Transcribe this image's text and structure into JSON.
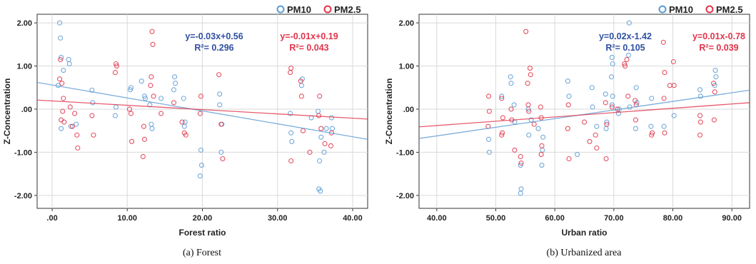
{
  "chart_data": [
    {
      "type": "scatter",
      "title": "",
      "caption": "(a) Forest",
      "xlabel": "Forest ratio",
      "ylabel": "Z-Concentration",
      "xlim": [
        -2,
        42
      ],
      "ylim": [
        -2.3,
        2.2
      ],
      "xticks": [
        0,
        10,
        20,
        30,
        40
      ],
      "xtick_labels": [
        ".00",
        "10.00",
        "20.00",
        "30.00",
        "40.00"
      ],
      "yticks": [
        2,
        1,
        0,
        -1,
        -2
      ],
      "ytick_labels": [
        "2.00",
        "1.00",
        ".00",
        "-1.00",
        "-2.00"
      ],
      "grid": true,
      "legend": "top-right",
      "series": [
        {
          "name": "PM10",
          "color": "#5b9bd5",
          "trend": {
            "equation": "y=-0.03x+0.56",
            "r2_label": "R²= 0.296",
            "slope": -0.03,
            "intercept": 0.56
          },
          "points": [
            [
              1,
              2.0
            ],
            [
              1.1,
              1.65
            ],
            [
              1.2,
              1.2
            ],
            [
              1.5,
              0.9
            ],
            [
              0.8,
              0.55
            ],
            [
              2.2,
              1.15
            ],
            [
              2.3,
              1.05
            ],
            [
              1.2,
              -0.45
            ],
            [
              2.5,
              -0.4
            ],
            [
              3.2,
              -0.35
            ],
            [
              5.3,
              0.44
            ],
            [
              5.4,
              0.15
            ],
            [
              8.5,
              0.05
            ],
            [
              8.4,
              -0.15
            ],
            [
              10.5,
              0.5
            ],
            [
              10.4,
              0.45
            ],
            [
              11.9,
              0.65
            ],
            [
              12.3,
              0.3
            ],
            [
              12.4,
              0.25
            ],
            [
              13,
              0.1
            ],
            [
              13.2,
              -0.35
            ],
            [
              13.3,
              -0.45
            ],
            [
              14.5,
              0.25
            ],
            [
              16.3,
              0.75
            ],
            [
              16.4,
              0.6
            ],
            [
              16.2,
              0.45
            ],
            [
              17.5,
              0.25
            ],
            [
              17.7,
              -0.3
            ],
            [
              17.6,
              -0.4
            ],
            [
              19.8,
              -0.95
            ],
            [
              19.9,
              -1.3
            ],
            [
              19.7,
              -1.55
            ],
            [
              22.3,
              0.35
            ],
            [
              22.3,
              0.1
            ],
            [
              22.6,
              -0.35
            ],
            [
              22.5,
              -1.0
            ],
            [
              31.7,
              -0.1
            ],
            [
              31.8,
              -0.55
            ],
            [
              31.9,
              -0.75
            ],
            [
              33.2,
              0.55
            ],
            [
              33.3,
              0.7
            ],
            [
              34.5,
              -0.2
            ],
            [
              35.6,
              -1.2
            ],
            [
              35.5,
              -1.85
            ],
            [
              35.7,
              -1.9
            ],
            [
              35.4,
              -0.05
            ],
            [
              35.8,
              -0.65
            ],
            [
              36.2,
              -1.0
            ],
            [
              36.5,
              -0.45
            ],
            [
              37.2,
              -0.2
            ],
            [
              37.3,
              -0.45
            ]
          ]
        },
        {
          "name": "PM2.5",
          "color": "#e0344a",
          "trend": {
            "equation": "y=-0.01x+0.19",
            "r2_label": "R²= 0.043",
            "slope": -0.01,
            "intercept": 0.19
          },
          "points": [
            [
              1.1,
              1.15
            ],
            [
              1.0,
              0.7
            ],
            [
              1.3,
              0.6
            ],
            [
              1.5,
              0.25
            ],
            [
              1.4,
              -0.05
            ],
            [
              1.2,
              -0.25
            ],
            [
              1.6,
              -0.3
            ],
            [
              2.4,
              0.05
            ],
            [
              3.0,
              -0.1
            ],
            [
              2.7,
              -0.4
            ],
            [
              3.3,
              -0.6
            ],
            [
              3.4,
              -0.9
            ],
            [
              5.3,
              -0.15
            ],
            [
              5.5,
              -0.6
            ],
            [
              8.5,
              1.05
            ],
            [
              8.6,
              1.0
            ],
            [
              8.4,
              0.85
            ],
            [
              10.3,
              0.0
            ],
            [
              10.5,
              -0.1
            ],
            [
              10.6,
              -0.75
            ],
            [
              12.2,
              -0.4
            ],
            [
              12.3,
              -0.7
            ],
            [
              12.1,
              -1.1
            ],
            [
              13.3,
              1.8
            ],
            [
              13.4,
              1.5
            ],
            [
              13.2,
              0.75
            ],
            [
              13.1,
              0.55
            ],
            [
              13.5,
              0.3
            ],
            [
              14.5,
              -0.1
            ],
            [
              16.2,
              0.15
            ],
            [
              17.3,
              -0.3
            ],
            [
              17.6,
              -0.55
            ],
            [
              17.8,
              -0.6
            ],
            [
              19.8,
              0.3
            ],
            [
              19.7,
              -0.1
            ],
            [
              22.2,
              0.8
            ],
            [
              22.5,
              -0.35
            ],
            [
              22.7,
              -1.15
            ],
            [
              31.8,
              0.95
            ],
            [
              31.7,
              0.85
            ],
            [
              33.1,
              0.65
            ],
            [
              33.2,
              0.3
            ],
            [
              33.4,
              -0.5
            ],
            [
              34.3,
              -1.0
            ],
            [
              35.6,
              0.3
            ],
            [
              35.5,
              -0.15
            ],
            [
              35.8,
              -0.45
            ],
            [
              36.3,
              -0.8
            ],
            [
              37.2,
              -0.55
            ],
            [
              37.1,
              -0.85
            ],
            [
              31.8,
              -1.2
            ]
          ]
        }
      ]
    },
    {
      "type": "scatter",
      "title": "",
      "caption": "(b) Urbanized area",
      "xlabel": "Urban ratio",
      "ylabel": "Z-Concentration",
      "xlim": [
        37,
        93
      ],
      "ylim": [
        -2.3,
        2.2
      ],
      "xticks": [
        40,
        50,
        60,
        70,
        80,
        90
      ],
      "xtick_labels": [
        "40.00",
        "50.00",
        "60.00",
        "70.00",
        "80.00",
        "90.00"
      ],
      "yticks": [
        2,
        1,
        0,
        -1,
        -2
      ],
      "ytick_labels": [
        "2.00",
        "1.00",
        ".00",
        "-1.00",
        "-2.00"
      ],
      "grid": true,
      "legend": "top-right",
      "series": [
        {
          "name": "PM10",
          "color": "#5b9bd5",
          "trend": {
            "equation": "y=0.02x-1.42",
            "r2_label": "R²= 0.105",
            "slope": 0.02,
            "intercept": -1.42
          },
          "points": [
            [
              48.8,
              -0.7
            ],
            [
              48.9,
              -1.0
            ],
            [
              51,
              0.3
            ],
            [
              52.5,
              0.75
            ],
            [
              52.6,
              0.6
            ],
            [
              53.1,
              0.1
            ],
            [
              53.2,
              -0.3
            ],
            [
              54.2,
              -1.3
            ],
            [
              54.3,
              -1.85
            ],
            [
              54.2,
              -1.95
            ],
            [
              55.5,
              0.0
            ],
            [
              55.6,
              -0.6
            ],
            [
              56,
              -0.25
            ],
            [
              57.2,
              -0.45
            ],
            [
              58,
              -0.65
            ],
            [
              57.9,
              -0.95
            ],
            [
              57.8,
              -1.3
            ],
            [
              62.2,
              0.65
            ],
            [
              62.4,
              0.3
            ],
            [
              63.8,
              -1.05
            ],
            [
              66.3,
              0.5
            ],
            [
              66.4,
              0.05
            ],
            [
              67.1,
              -0.4
            ],
            [
              68.6,
              0.35
            ],
            [
              68.8,
              -0.3
            ],
            [
              68.7,
              -0.45
            ],
            [
              69.7,
              1.2
            ],
            [
              69.8,
              1.05
            ],
            [
              69.6,
              0.75
            ],
            [
              69.8,
              0.3
            ],
            [
              69.7,
              0.1
            ],
            [
              70.9,
              0.0
            ],
            [
              70.8,
              -0.1
            ],
            [
              72.6,
              2.0
            ],
            [
              72.5,
              1.25
            ],
            [
              72.7,
              0.05
            ],
            [
              73.8,
              0.5
            ],
            [
              73.9,
              0.15
            ],
            [
              73.7,
              -0.45
            ],
            [
              76.4,
              0.25
            ],
            [
              76.3,
              -0.4
            ],
            [
              78.5,
              -0.4
            ],
            [
              80.2,
              -0.15
            ],
            [
              84.6,
              0.45
            ],
            [
              84.7,
              0.3
            ],
            [
              87.2,
              0.9
            ],
            [
              87.3,
              0.75
            ],
            [
              87.1,
              0.55
            ]
          ]
        },
        {
          "name": "PM2.5",
          "color": "#e0344a",
          "trend": {
            "equation": "y=0.01x-0.78",
            "r2_label": "R²= 0.039",
            "slope": 0.01,
            "intercept": -0.78
          },
          "points": [
            [
              48.8,
              0.3
            ],
            [
              48.9,
              -0.05
            ],
            [
              48.7,
              -0.4
            ],
            [
              51,
              0.25
            ],
            [
              51.2,
              -0.2
            ],
            [
              51.1,
              -0.55
            ],
            [
              51,
              -0.6
            ],
            [
              52.6,
              0.0
            ],
            [
              52.7,
              -0.25
            ],
            [
              53.2,
              -0.95
            ],
            [
              54.2,
              -1.1
            ],
            [
              54.3,
              -1.25
            ],
            [
              55.1,
              1.8
            ],
            [
              55.4,
              0.6
            ],
            [
              55.5,
              0.1
            ],
            [
              55.6,
              -0.05
            ],
            [
              55.8,
              0.95
            ],
            [
              55.9,
              0.8
            ],
            [
              56.5,
              -0.35
            ],
            [
              57.7,
              -0.2
            ],
            [
              57.8,
              -0.85
            ],
            [
              57.7,
              -1.05
            ],
            [
              57.6,
              0.05
            ],
            [
              62.3,
              0.1
            ],
            [
              62.2,
              -0.45
            ],
            [
              62.4,
              -1.15
            ],
            [
              65,
              -0.3
            ],
            [
              65.9,
              -0.75
            ],
            [
              66.9,
              -0.6
            ],
            [
              67.1,
              -0.9
            ],
            [
              68.6,
              0.15
            ],
            [
              68.8,
              -0.35
            ],
            [
              68.7,
              -1.15
            ],
            [
              69.7,
              0.05
            ],
            [
              70.6,
              0.0
            ],
            [
              71.8,
              1.05
            ],
            [
              71.9,
              1.0
            ],
            [
              72.2,
              1.15
            ],
            [
              72.4,
              0.3
            ],
            [
              73.6,
              0.2
            ],
            [
              73.8,
              0.1
            ],
            [
              73.7,
              -0.25
            ],
            [
              76.5,
              -0.55
            ],
            [
              76.4,
              -0.6
            ],
            [
              78.4,
              1.55
            ],
            [
              78.6,
              0.85
            ],
            [
              78.5,
              0.25
            ],
            [
              78.6,
              -0.55
            ],
            [
              79.5,
              0.55
            ],
            [
              80.1,
              1.1
            ],
            [
              80.2,
              0.55
            ],
            [
              84.6,
              -0.15
            ],
            [
              84.7,
              -0.3
            ],
            [
              84.6,
              -0.6
            ],
            [
              86.9,
              0.6
            ],
            [
              87.1,
              0.4
            ],
            [
              87,
              -0.25
            ]
          ]
        }
      ]
    }
  ]
}
